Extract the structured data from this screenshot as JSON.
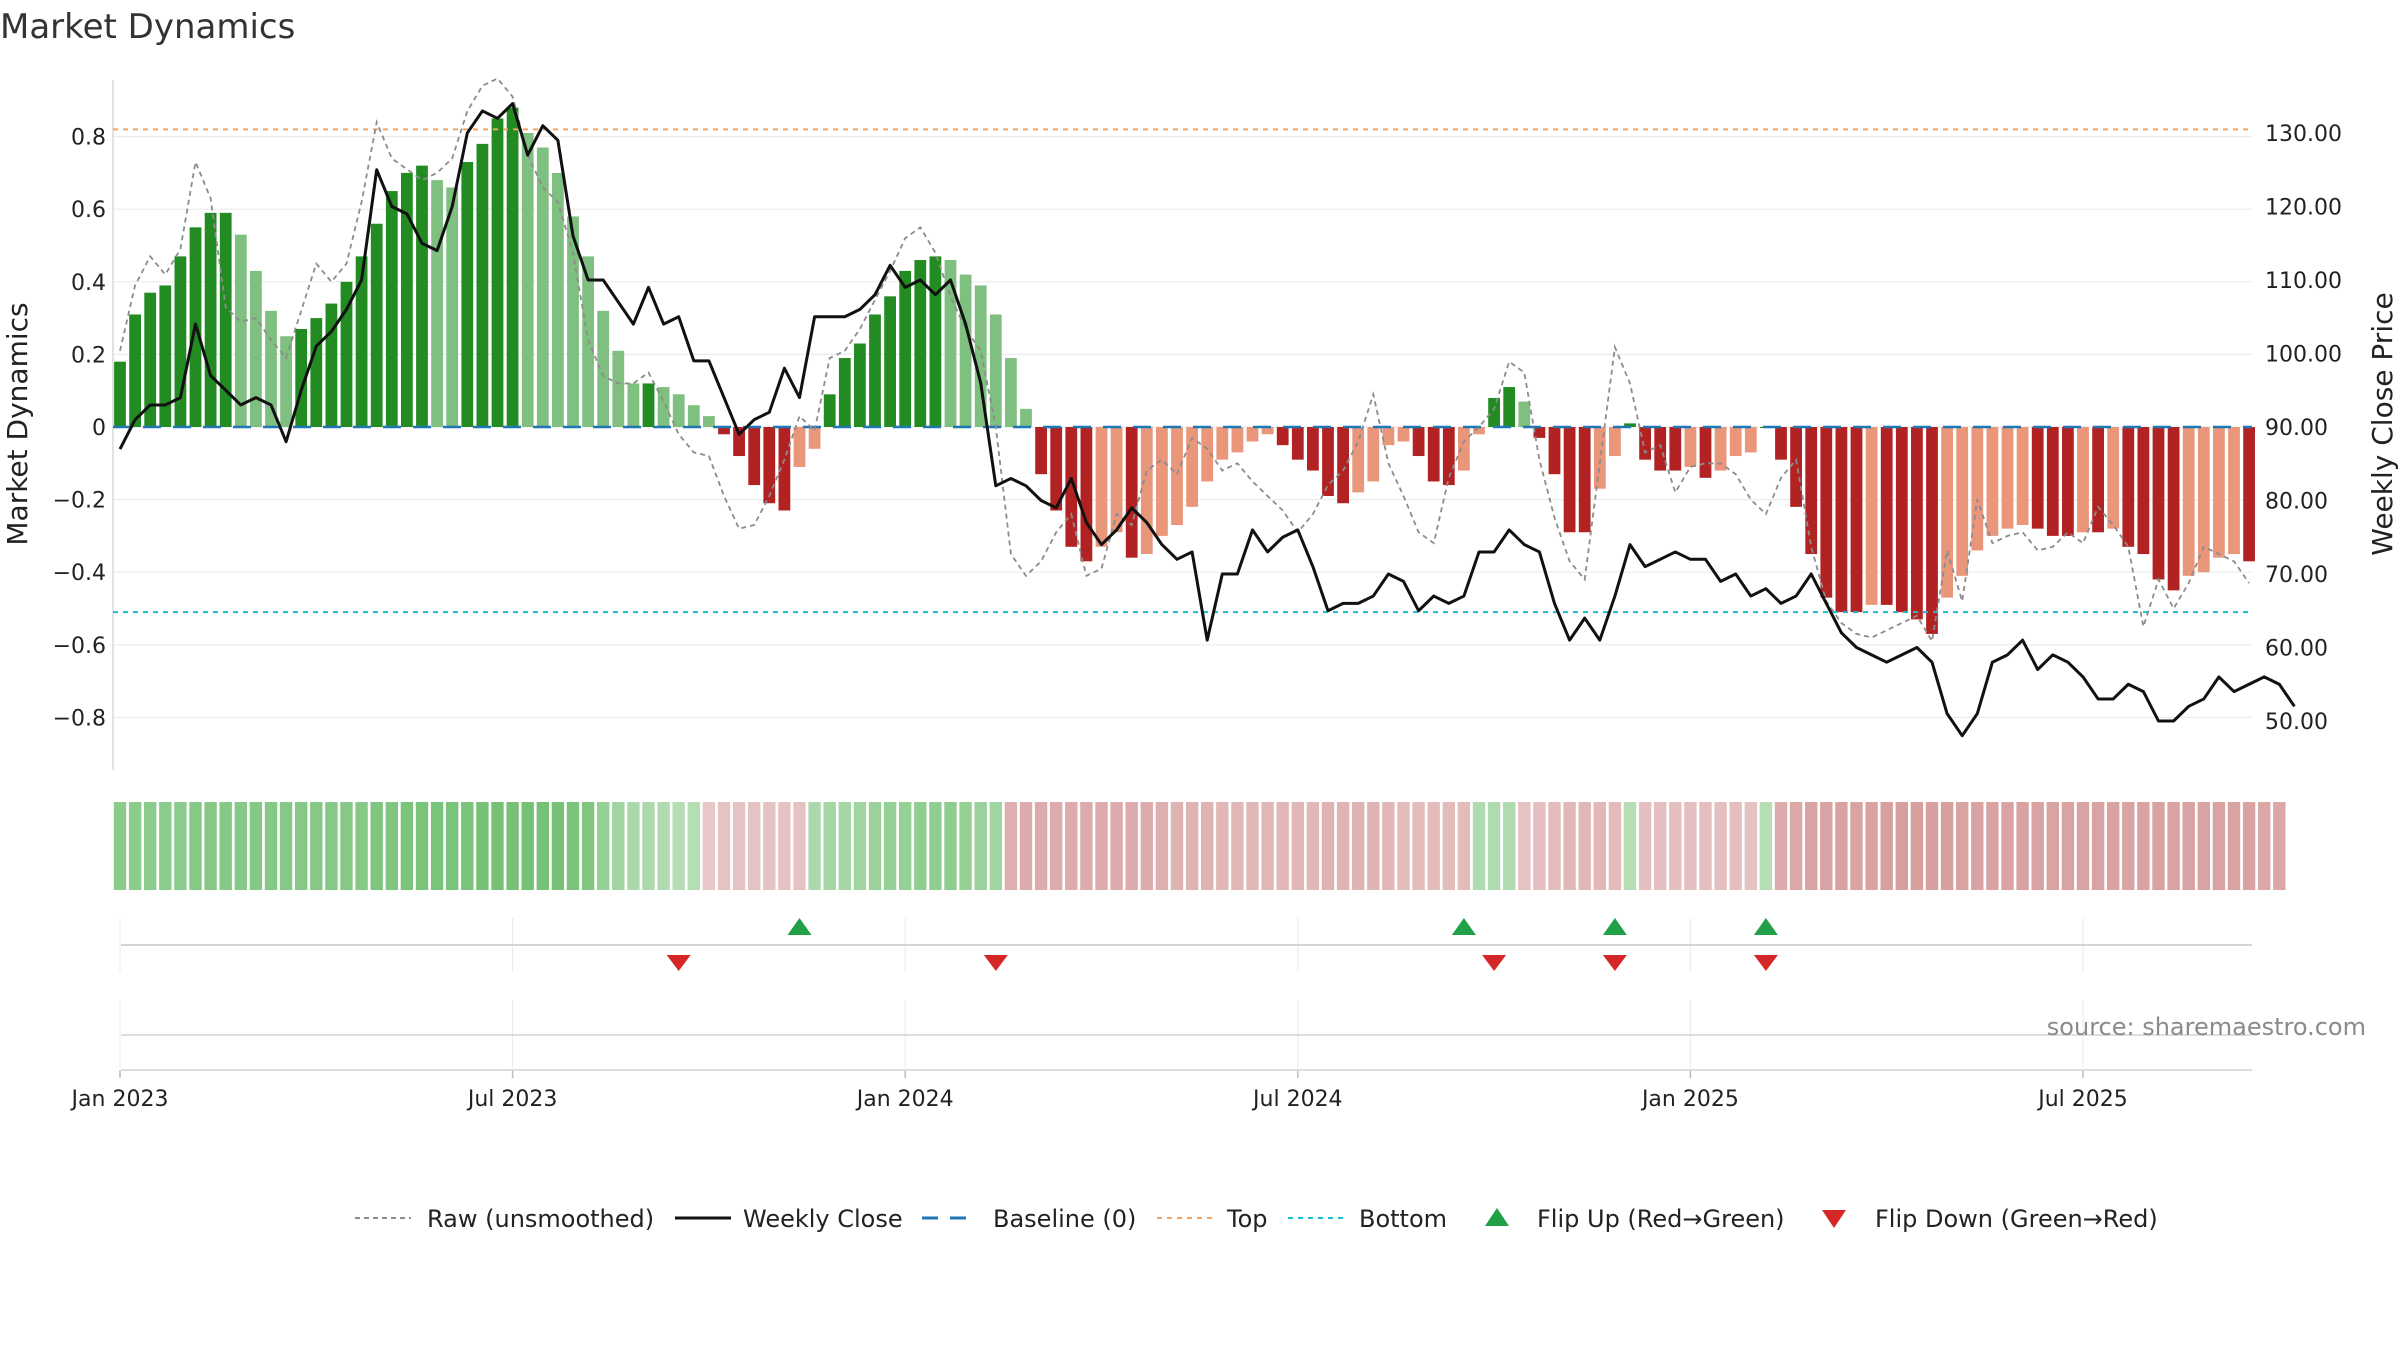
{
  "chart_data": {
    "type": "bar",
    "title": "Market Dynamics",
    "ylabel_left": "Market Dynamics",
    "ylabel_right": "Weekly Close Price",
    "source": "source: sharemaestro.com",
    "ylim_left": [
      -0.95,
      0.95
    ],
    "ylim_right": [
      43,
      137
    ],
    "grid": true,
    "legend_position": "bottom",
    "yticks_left": [
      {
        "v": 0.8,
        "label": "0.8"
      },
      {
        "v": 0.6,
        "label": "0.6"
      },
      {
        "v": 0.4,
        "label": "0.4"
      },
      {
        "v": 0.2,
        "label": "0.2"
      },
      {
        "v": 0.0,
        "label": "0"
      },
      {
        "v": -0.2,
        "label": "−0.2"
      },
      {
        "v": -0.4,
        "label": "−0.4"
      },
      {
        "v": -0.6,
        "label": "−0.6"
      },
      {
        "v": -0.8,
        "label": "−0.8"
      }
    ],
    "yticks_right": [
      {
        "v": 130,
        "label": "130.00"
      },
      {
        "v": 120,
        "label": "120.00"
      },
      {
        "v": 110,
        "label": "110.00"
      },
      {
        "v": 100,
        "label": "100.00"
      },
      {
        "v": 90,
        "label": "90.00"
      },
      {
        "v": 80,
        "label": "80.00"
      },
      {
        "v": 70,
        "label": "70.00"
      },
      {
        "v": 60,
        "label": "60.00"
      },
      {
        "v": 50,
        "label": "50.00"
      }
    ],
    "xticks": [
      {
        "week": 1,
        "label": "Jan 2023"
      },
      {
        "week": 27,
        "label": "Jul 2023"
      },
      {
        "week": 53,
        "label": "Jan 2024"
      },
      {
        "week": 79,
        "label": "Jul 2024"
      },
      {
        "week": 105,
        "label": "Jan 2025"
      },
      {
        "week": 131,
        "label": "Jul 2025"
      }
    ],
    "top_line": 0.82,
    "bottom_line": -0.51,
    "baseline": 0,
    "dynamics": [
      0.18,
      0.31,
      0.37,
      0.39,
      0.47,
      0.55,
      0.59,
      0.59,
      0.53,
      0.43,
      0.32,
      0.25,
      0.27,
      0.3,
      0.34,
      0.4,
      0.47,
      0.56,
      0.65,
      0.7,
      0.72,
      0.68,
      0.66,
      0.73,
      0.78,
      0.85,
      0.88,
      0.81,
      0.77,
      0.7,
      0.58,
      0.47,
      0.32,
      0.21,
      0.12,
      0.12,
      0.11,
      0.09,
      0.06,
      0.03,
      -0.02,
      -0.08,
      -0.16,
      -0.21,
      -0.23,
      -0.11,
      -0.06,
      0.09,
      0.19,
      0.23,
      0.31,
      0.36,
      0.43,
      0.46,
      0.47,
      0.46,
      0.42,
      0.39,
      0.31,
      0.19,
      0.05,
      -0.13,
      -0.23,
      -0.33,
      -0.37,
      -0.33,
      -0.29,
      -0.36,
      -0.35,
      -0.3,
      -0.27,
      -0.22,
      -0.15,
      -0.09,
      -0.07,
      -0.04,
      -0.02,
      -0.05,
      -0.09,
      -0.12,
      -0.19,
      -0.21,
      -0.18,
      -0.15,
      -0.05,
      -0.04,
      -0.08,
      -0.15,
      -0.16,
      -0.12,
      -0.02,
      0.08,
      0.11,
      0.07,
      -0.03,
      -0.13,
      -0.29,
      -0.29,
      -0.17,
      -0.08,
      0.01,
      -0.09,
      -0.12,
      -0.12,
      -0.11,
      -0.14,
      -0.12,
      -0.08,
      -0.07,
      0.0,
      -0.09,
      -0.22,
      -0.35,
      -0.47,
      -0.51,
      -0.51,
      -0.49,
      -0.49,
      -0.51,
      -0.53,
      -0.57,
      -0.47,
      -0.41,
      -0.34,
      -0.3,
      -0.28,
      -0.27,
      -0.28,
      -0.3,
      -0.3,
      -0.29,
      -0.29,
      -0.28,
      -0.33,
      -0.35,
      -0.42,
      -0.45,
      -0.41,
      -0.4,
      -0.36,
      -0.35,
      -0.37
    ],
    "raw": [
      0.21,
      0.39,
      0.47,
      0.42,
      0.49,
      0.73,
      0.63,
      0.33,
      0.29,
      0.3,
      0.24,
      0.19,
      0.32,
      0.45,
      0.4,
      0.45,
      0.62,
      0.84,
      0.74,
      0.71,
      0.68,
      0.7,
      0.74,
      0.87,
      0.94,
      0.96,
      0.91,
      0.75,
      0.66,
      0.62,
      0.48,
      0.24,
      0.14,
      0.12,
      0.12,
      0.15,
      0.07,
      -0.02,
      -0.07,
      -0.08,
      -0.19,
      -0.28,
      -0.27,
      -0.19,
      -0.09,
      0.03,
      -0.01,
      0.19,
      0.21,
      0.27,
      0.35,
      0.43,
      0.52,
      0.55,
      0.48,
      0.36,
      0.27,
      0.21,
      0.0,
      -0.35,
      -0.41,
      -0.37,
      -0.29,
      -0.24,
      -0.41,
      -0.39,
      -0.24,
      -0.27,
      -0.12,
      -0.09,
      -0.13,
      -0.03,
      -0.06,
      -0.12,
      -0.1,
      -0.15,
      -0.19,
      -0.23,
      -0.29,
      -0.24,
      -0.16,
      -0.12,
      -0.04,
      0.09,
      -0.1,
      -0.19,
      -0.29,
      -0.32,
      -0.14,
      -0.04,
      0.0,
      0.05,
      0.18,
      0.15,
      -0.09,
      -0.25,
      -0.37,
      -0.42,
      -0.1,
      0.22,
      0.12,
      -0.07,
      -0.05,
      -0.18,
      -0.11,
      -0.1,
      -0.1,
      -0.13,
      -0.2,
      -0.24,
      -0.14,
      -0.09,
      -0.33,
      -0.48,
      -0.54,
      -0.57,
      -0.58,
      -0.56,
      -0.54,
      -0.52,
      -0.59,
      -0.34,
      -0.48,
      -0.2,
      -0.32,
      -0.3,
      -0.29,
      -0.34,
      -0.33,
      -0.29,
      -0.32,
      -0.22,
      -0.27,
      -0.33,
      -0.55,
      -0.42,
      -0.5,
      -0.43,
      -0.33,
      -0.35,
      -0.37,
      -0.43
    ],
    "weekly_close": [
      87,
      91,
      93,
      93,
      94,
      104,
      97,
      95,
      93,
      94,
      93,
      88,
      95,
      101,
      103,
      106,
      110,
      125,
      120,
      119,
      115,
      114,
      120,
      130,
      133,
      132,
      134,
      127,
      131,
      129,
      116,
      110,
      110,
      107,
      104,
      109,
      104,
      105,
      99,
      99,
      94,
      89,
      91,
      92,
      98,
      94,
      105,
      105,
      105,
      106,
      108,
      112,
      109,
      110,
      108,
      110,
      104,
      96,
      82,
      83,
      82,
      80,
      79,
      83,
      77,
      74,
      76,
      79,
      77,
      74,
      72,
      73,
      61,
      70,
      70,
      76,
      73,
      75,
      76,
      71,
      65,
      66,
      66,
      67,
      70,
      69,
      65,
      67,
      66,
      67,
      73,
      73,
      76,
      74,
      73,
      66,
      61,
      64,
      61,
      67,
      74,
      71,
      72,
      73,
      72,
      72,
      69,
      70,
      67,
      68,
      66,
      67,
      70,
      66,
      62,
      60,
      59,
      58,
      59,
      60,
      58,
      51,
      48,
      51,
      58,
      59,
      61,
      57,
      59,
      58,
      56,
      53,
      53,
      55,
      54,
      50,
      50,
      52,
      53,
      56,
      54,
      55,
      56,
      55,
      52
    ],
    "regime_strip": [
      0.7,
      0.7,
      0.7,
      0.7,
      0.7,
      0.75,
      0.75,
      0.75,
      0.75,
      0.75,
      0.75,
      0.75,
      0.75,
      0.75,
      0.75,
      0.75,
      0.75,
      0.8,
      0.8,
      0.85,
      0.85,
      0.85,
      0.85,
      0.85,
      0.9,
      0.9,
      0.9,
      0.9,
      0.9,
      0.9,
      0.85,
      0.8,
      0.6,
      0.5,
      0.4,
      0.4,
      0.35,
      0.3,
      0.3,
      -0.25,
      -0.3,
      -0.3,
      -0.3,
      -0.3,
      -0.3,
      -0.3,
      0.4,
      0.45,
      0.45,
      0.5,
      0.55,
      0.6,
      0.6,
      0.65,
      0.65,
      0.65,
      0.6,
      0.55,
      0.5,
      -0.55,
      -0.6,
      -0.6,
      -0.6,
      -0.6,
      -0.6,
      -0.6,
      -0.6,
      -0.6,
      -0.6,
      -0.55,
      -0.5,
      -0.5,
      -0.5,
      -0.45,
      -0.45,
      -0.45,
      -0.45,
      -0.45,
      -0.45,
      -0.45,
      -0.5,
      -0.5,
      -0.5,
      -0.5,
      -0.45,
      -0.4,
      -0.4,
      -0.4,
      -0.4,
      -0.4,
      0.35,
      0.35,
      0.35,
      -0.3,
      -0.35,
      -0.4,
      -0.45,
      -0.45,
      -0.45,
      -0.4,
      0.3,
      -0.35,
      -0.35,
      -0.35,
      -0.35,
      -0.35,
      -0.35,
      -0.35,
      -0.3,
      0.3,
      -0.6,
      -0.65,
      -0.7,
      -0.7,
      -0.7,
      -0.7,
      -0.7,
      -0.75,
      -0.75,
      -0.75,
      -0.75,
      -0.75,
      -0.7,
      -0.7,
      -0.7,
      -0.7,
      -0.7,
      -0.7,
      -0.7,
      -0.7,
      -0.7,
      -0.7,
      -0.7,
      -0.7,
      -0.7,
      -0.7,
      -0.7,
      -0.7,
      -0.7,
      -0.7,
      -0.7,
      -0.7,
      -0.65,
      -0.65
    ],
    "flip_up_weeks": [
      46,
      90,
      100,
      110
    ],
    "flip_down_weeks": [
      38,
      59,
      92,
      100,
      110
    ],
    "colors": {
      "bar_green_strong": "#228b22",
      "bar_green_light": "#7fbf7f",
      "bar_red_strong": "#b22222",
      "bar_red_light": "#e9967a",
      "raw_line": "#8c8c8c",
      "close_line": "#111111",
      "baseline": "#1f77b4",
      "top": "#f4a460",
      "bottom": "#17becf",
      "flip_up": "#22a047",
      "flip_down": "#d62728"
    },
    "legend": [
      {
        "key": "raw",
        "label": "Raw (unsmoothed)"
      },
      {
        "key": "close",
        "label": "Weekly Close"
      },
      {
        "key": "baseline",
        "label": "Baseline (0)"
      },
      {
        "key": "top",
        "label": "Top"
      },
      {
        "key": "bottom",
        "label": "Bottom"
      },
      {
        "key": "flipup",
        "label": "Flip Up (Red→Green)"
      },
      {
        "key": "flipdown",
        "label": "Flip Down (Green→Red)"
      }
    ]
  }
}
